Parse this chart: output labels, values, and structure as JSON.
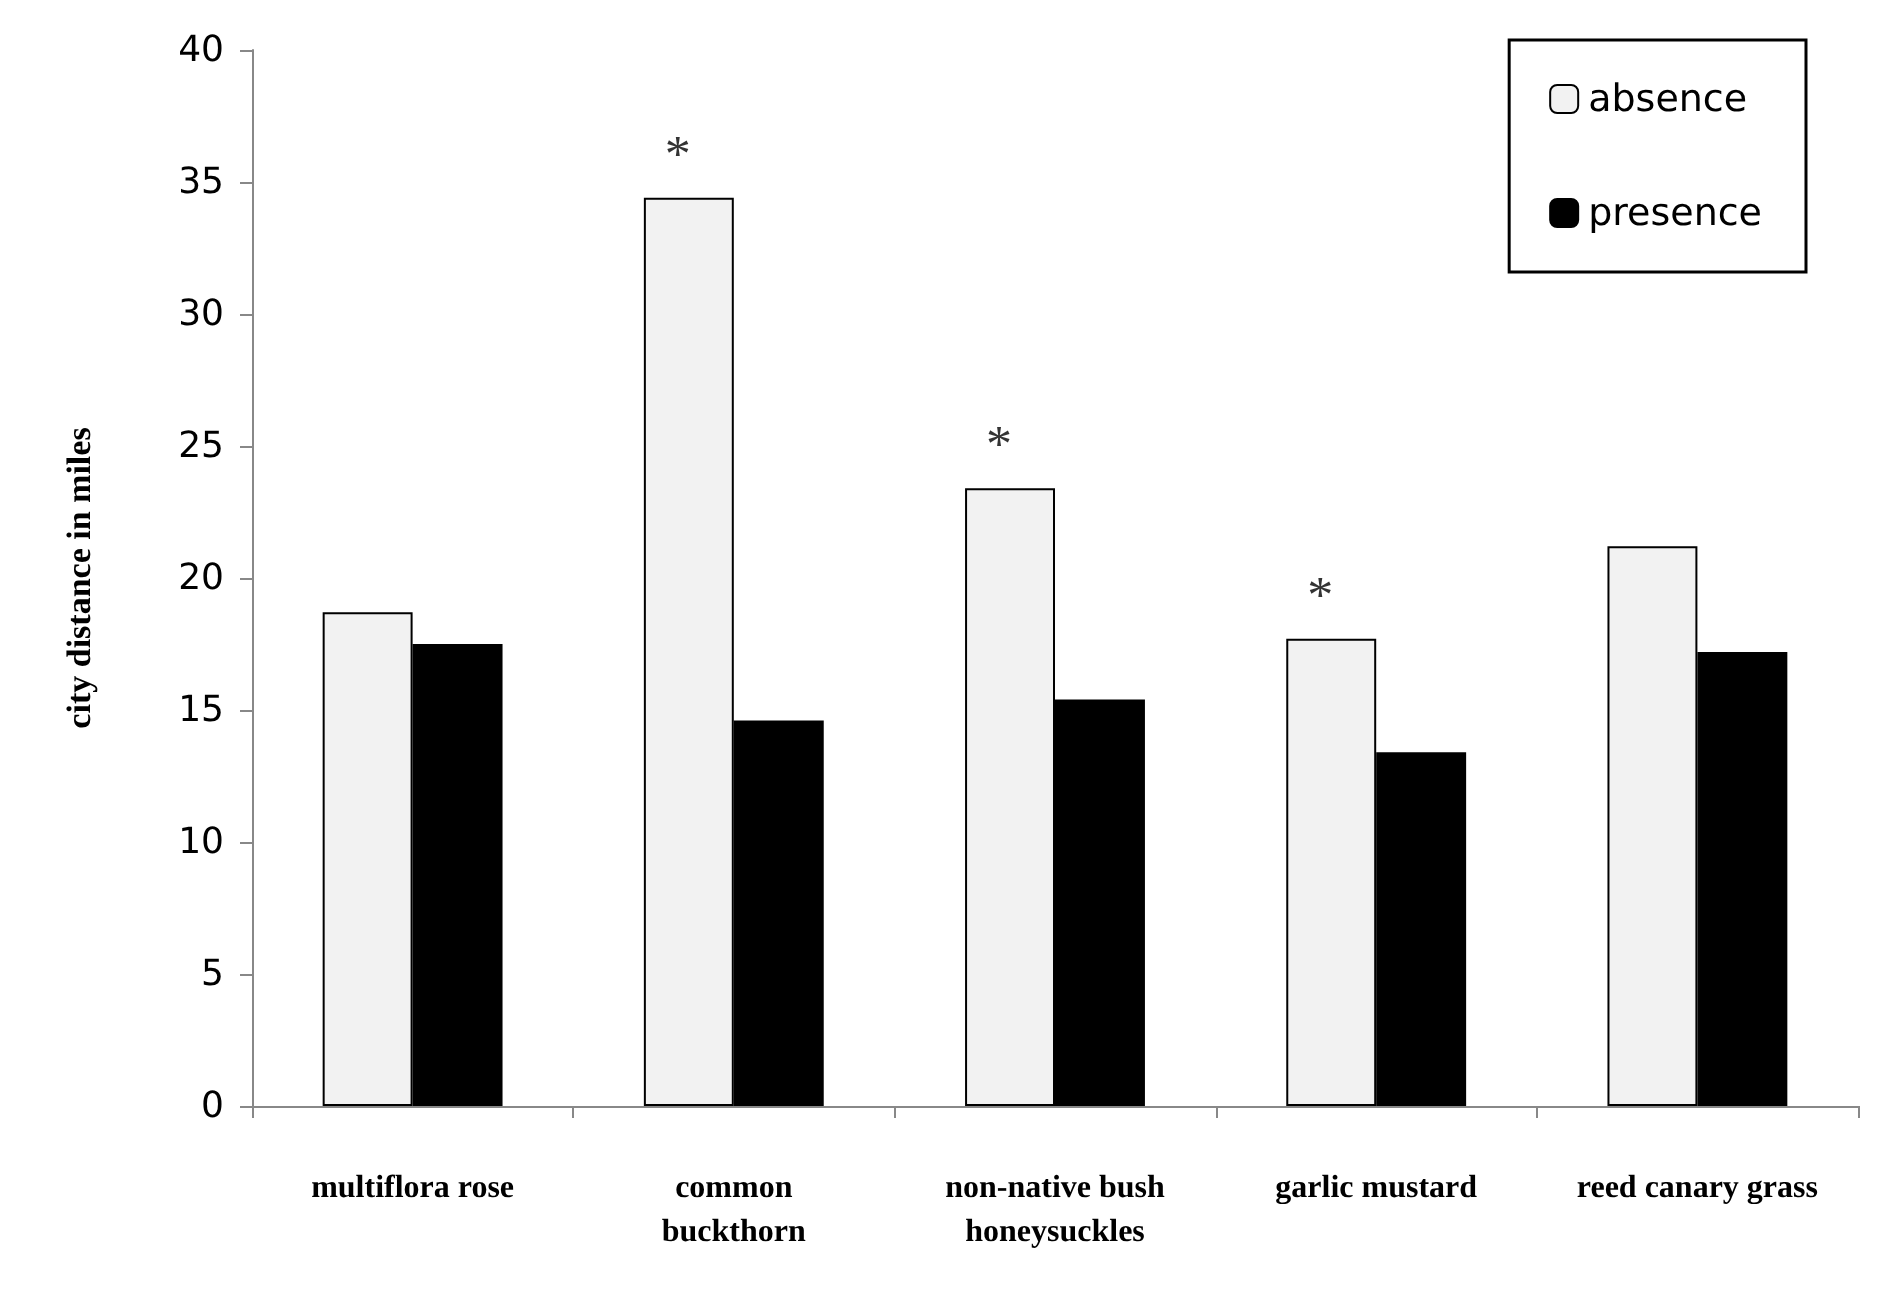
{
  "chart_data": {
    "type": "bar",
    "ylabel": "city distance in miles",
    "categories": [
      "multiflora rose",
      "common\nbuckthorn",
      "non-native bush\nhoneysuckles",
      "garlic mustard",
      "reed canary grass"
    ],
    "series": [
      {
        "name": "absence",
        "color": "#f2f2f2",
        "values": [
          18.7,
          34.4,
          23.4,
          17.7,
          21.2
        ]
      },
      {
        "name": "presence",
        "color": "#000000",
        "values": [
          17.5,
          14.6,
          15.4,
          13.4,
          17.2
        ]
      }
    ],
    "ylim": [
      0,
      40
    ],
    "yticks": [
      0,
      5,
      10,
      15,
      20,
      25,
      30,
      35,
      40
    ],
    "grid": false,
    "legend": "top right",
    "annotations": [
      {
        "text": "*",
        "x": "common\nbuckthorn",
        "y": 34.4
      },
      {
        "text": "*",
        "x": "non-native bush\nhoneysuckles",
        "y": 23.4
      },
      {
        "text": "*",
        "x": "garlic mustard",
        "y": 17.7
      }
    ]
  }
}
